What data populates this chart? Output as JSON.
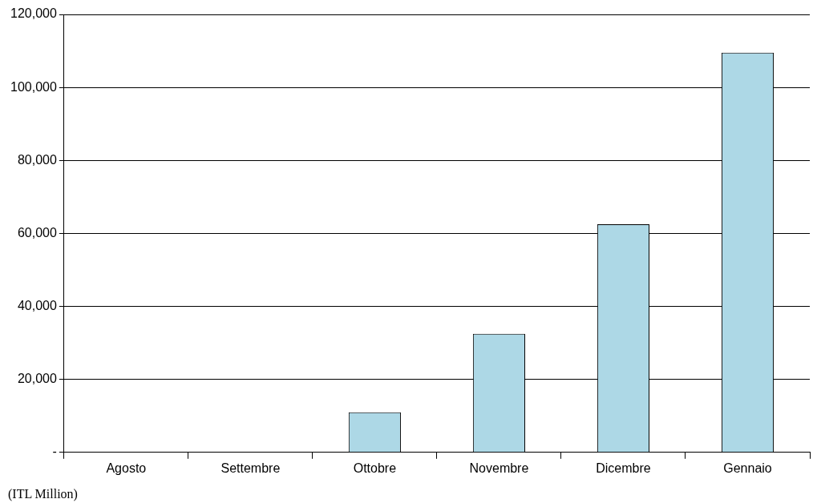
{
  "chart_data": {
    "type": "bar",
    "categories": [
      "Agosto",
      "Settembre",
      "Ottobre",
      "Novembre",
      "Dicembre",
      "Gennaio"
    ],
    "values": [
      0,
      0,
      11000,
      32500,
      62500,
      109500
    ],
    "color": "#add8e6",
    "ylim": [
      0,
      120000
    ],
    "yticks": [
      {
        "value": 0,
        "label": "-"
      },
      {
        "value": 20000,
        "label": "20,000"
      },
      {
        "value": 40000,
        "label": "40,000"
      },
      {
        "value": 60000,
        "label": "60,000"
      },
      {
        "value": 80000,
        "label": "80,000"
      },
      {
        "value": 100000,
        "label": "100,000"
      },
      {
        "value": 120000,
        "label": "120,000"
      }
    ],
    "grid": "y",
    "annotations": [
      "(ITL Million)"
    ]
  }
}
